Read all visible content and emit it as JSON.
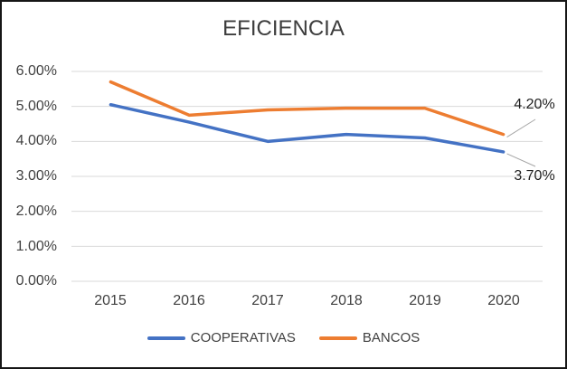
{
  "chart_data": {
    "type": "line",
    "title": "EFICIENCIA",
    "categories": [
      "2015",
      "2016",
      "2017",
      "2018",
      "2019",
      "2020"
    ],
    "series": [
      {
        "name": "COOPERATIVAS",
        "color": "#4472C4",
        "values": [
          5.05,
          4.55,
          4.0,
          4.2,
          4.1,
          3.7
        ]
      },
      {
        "name": "BANCOS",
        "color": "#ED7D31",
        "values": [
          5.7,
          4.75,
          4.9,
          4.95,
          4.95,
          4.2
        ]
      }
    ],
    "xlabel": "",
    "ylabel": "",
    "ylim": [
      0,
      6
    ],
    "ytick_values": [
      6,
      5,
      4,
      3,
      2,
      1,
      0
    ],
    "yticks": [
      "6.00%",
      "5.00%",
      "4.00%",
      "3.00%",
      "2.00%",
      "1.00%",
      "0.00%"
    ],
    "grid": "horizontal",
    "gridline_color": "#D9D9D9",
    "leader_line_color": "#A6A6A6",
    "legend_position": "bottom",
    "data_labels": [
      {
        "series": "BANCOS",
        "category": "2020",
        "text": "4.20%"
      },
      {
        "series": "COOPERATIVAS",
        "category": "2020",
        "text": "3.70%"
      }
    ]
  }
}
